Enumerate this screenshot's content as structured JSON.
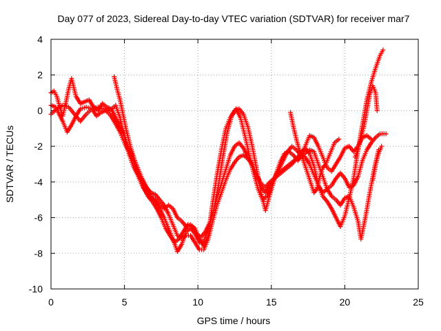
{
  "chart_data": {
    "type": "scatter",
    "title": "Day 077 of 2023, Sidereal Day-to-day VTEC variation (SDTVAR) for receiver mar7",
    "xlabel": "GPS time / hours",
    "ylabel": "SDTVAR / TECUs",
    "xlim": [
      0,
      25
    ],
    "ylim": [
      -10,
      4
    ],
    "xticks": [
      "0",
      "5",
      "10",
      "15",
      "20",
      "25"
    ],
    "yticks": [
      "-10",
      "-8",
      "-6",
      "-4",
      "-2",
      "0",
      "2",
      "4"
    ],
    "grid": true,
    "marker": "+",
    "color": "#ff0000",
    "series": [
      {
        "points": [
          [
            0.0,
            0.3
          ],
          [
            0.3,
            0.2
          ],
          [
            0.5,
            -0.1
          ],
          [
            0.8,
            -0.6
          ],
          [
            1.1,
            -1.2
          ],
          [
            1.4,
            -0.8
          ],
          [
            1.7,
            -0.3
          ],
          [
            2.0,
            0.1
          ],
          [
            2.4,
            0.2
          ],
          [
            2.8,
            0.1
          ],
          [
            3.1,
            -0.3
          ],
          [
            3.4,
            -0.1
          ],
          [
            3.7,
            0.0
          ],
          [
            4.0,
            -0.2
          ],
          [
            4.3,
            -0.6
          ],
          [
            4.7,
            -1.2
          ],
          [
            5.0,
            -1.8
          ],
          [
            5.3,
            -2.3
          ],
          [
            5.6,
            -2.8
          ],
          [
            5.9,
            -3.5
          ],
          [
            6.2,
            -4.0
          ],
          [
            6.5,
            -4.3
          ],
          [
            6.8,
            -4.6
          ],
          [
            7.1,
            -4.7
          ],
          [
            7.4,
            -5.0
          ],
          [
            7.7,
            -5.3
          ],
          [
            8.0,
            -5.8
          ],
          [
            8.3,
            -6.4
          ],
          [
            8.6,
            -7.0
          ],
          [
            8.9,
            -7.2
          ],
          [
            9.2,
            -7.0
          ],
          [
            9.5,
            -7.0
          ],
          [
            9.8,
            -7.4
          ],
          [
            10.1,
            -7.8
          ],
          [
            10.4,
            -7.8
          ],
          [
            10.7,
            -7.2
          ],
          [
            11.0,
            -6.2
          ],
          [
            11.3,
            -5.3
          ],
          [
            11.6,
            -4.6
          ],
          [
            11.9,
            -3.9
          ],
          [
            12.2,
            -3.3
          ],
          [
            12.5,
            -2.9
          ],
          [
            12.8,
            -2.6
          ],
          [
            13.1,
            -2.5
          ],
          [
            13.4,
            -2.7
          ],
          [
            13.7,
            -3.0
          ],
          [
            14.0,
            -3.6
          ],
          [
            14.3,
            -4.1
          ],
          [
            14.6,
            -4.3
          ],
          [
            14.9,
            -4.0
          ],
          [
            15.2,
            -3.8
          ],
          [
            15.5,
            -3.5
          ],
          [
            15.8,
            -3.3
          ],
          [
            16.1,
            -3.1
          ],
          [
            16.4,
            -2.9
          ],
          [
            16.7,
            -2.7
          ],
          [
            17.0,
            -2.6
          ],
          [
            17.3,
            -2.4
          ],
          [
            17.6,
            -2.2
          ],
          [
            17.9,
            -2.3
          ],
          [
            18.2,
            -3.0
          ],
          [
            18.5,
            -3.7
          ],
          [
            18.8,
            -4.4
          ],
          [
            19.1,
            -4.2
          ],
          [
            19.4,
            -3.8
          ],
          [
            19.7,
            -3.5
          ],
          [
            20.0,
            -3.8
          ],
          [
            20.3,
            -4.3
          ],
          [
            20.6,
            -4.2
          ],
          [
            20.9,
            -3.7
          ],
          [
            21.2,
            -2.8
          ],
          [
            21.5,
            -2.2
          ],
          [
            21.8,
            -1.8
          ],
          [
            22.1,
            -1.5
          ],
          [
            22.4,
            -1.3
          ],
          [
            22.8,
            -1.3
          ]
        ]
      },
      {
        "points": [
          [
            0.0,
            1.0
          ],
          [
            0.2,
            1.1
          ],
          [
            0.4,
            0.8
          ],
          [
            0.6,
            0.2
          ],
          [
            0.8,
            -0.3
          ],
          [
            1.0,
            0.4
          ],
          [
            1.2,
            1.2
          ],
          [
            1.4,
            1.8
          ],
          [
            1.7,
            0.8
          ],
          [
            2.0,
            0.4
          ],
          [
            2.3,
            0.5
          ],
          [
            2.6,
            0.6
          ],
          [
            2.9,
            0.2
          ],
          [
            3.2,
            0.0
          ],
          [
            3.5,
            0.4
          ],
          [
            3.8,
            0.2
          ],
          [
            4.1,
            0.1
          ],
          [
            4.4,
            -0.4
          ],
          [
            4.7,
            -0.9
          ],
          [
            5.0,
            -1.4
          ],
          [
            5.3,
            -2.1
          ],
          [
            5.6,
            -2.6
          ],
          [
            5.9,
            -3.2
          ],
          [
            6.2,
            -3.8
          ],
          [
            6.5,
            -4.3
          ],
          [
            6.8,
            -4.8
          ],
          [
            7.1,
            -5.0
          ],
          [
            7.4,
            -5.3
          ],
          [
            7.7,
            -5.5
          ],
          [
            8.0,
            -5.3
          ],
          [
            8.3,
            -5.5
          ],
          [
            8.6,
            -6.0
          ],
          [
            8.9,
            -6.2
          ],
          [
            9.2,
            -6.5
          ],
          [
            9.5,
            -6.4
          ],
          [
            9.8,
            -6.6
          ],
          [
            10.1,
            -7.2
          ],
          [
            10.4,
            -7.6
          ],
          [
            10.7,
            -7.0
          ],
          [
            11.0,
            -5.2
          ],
          [
            11.3,
            -3.6
          ],
          [
            11.6,
            -2.2
          ],
          [
            11.9,
            -1.0
          ],
          [
            12.2,
            -0.4
          ],
          [
            12.5,
            0.0
          ],
          [
            12.8,
            0.1
          ],
          [
            13.1,
            -0.2
          ],
          [
            13.4,
            -0.9
          ],
          [
            13.7,
            -2.0
          ],
          [
            14.0,
            -3.3
          ],
          [
            14.3,
            -4.6
          ],
          [
            14.6,
            -5.6
          ],
          [
            14.9,
            -4.7
          ],
          [
            15.2,
            -3.8
          ],
          [
            15.5,
            -3.3
          ],
          [
            15.8,
            -2.8
          ],
          [
            16.1,
            -2.3
          ],
          [
            16.4,
            -2.0
          ],
          [
            16.7,
            -2.2
          ],
          [
            17.0,
            -2.5
          ],
          [
            17.3,
            -2.6
          ],
          [
            17.6,
            -3.0
          ],
          [
            17.9,
            -3.6
          ],
          [
            18.2,
            -4.2
          ],
          [
            18.5,
            -4.8
          ],
          [
            18.8,
            -5.1
          ],
          [
            19.1,
            -5.5
          ],
          [
            19.4,
            -6.0
          ],
          [
            19.7,
            -6.5
          ],
          [
            20.0,
            -5.9
          ],
          [
            20.3,
            -4.9
          ],
          [
            20.6,
            -3.8
          ],
          [
            20.9,
            -2.2
          ],
          [
            21.2,
            -0.8
          ],
          [
            21.5,
            0.6
          ],
          [
            21.8,
            1.6
          ],
          [
            22.1,
            2.4
          ],
          [
            22.4,
            3.1
          ],
          [
            22.6,
            3.4
          ]
        ]
      },
      {
        "points": [
          [
            0.0,
            -0.2
          ],
          [
            0.4,
            0.1
          ],
          [
            0.8,
            0.3
          ],
          [
            1.2,
            0.2
          ],
          [
            1.6,
            -0.2
          ],
          [
            2.0,
            -0.6
          ],
          [
            2.4,
            -0.2
          ],
          [
            2.8,
            0.1
          ],
          [
            3.2,
            0.2
          ],
          [
            3.6,
            0.1
          ],
          [
            4.0,
            0.0
          ],
          [
            4.4,
            0.3
          ],
          [
            4.7,
            -0.4
          ],
          [
            5.0,
            -1.5
          ],
          [
            5.3,
            -2.4
          ],
          [
            5.6,
            -3.1
          ],
          [
            5.9,
            -3.6
          ],
          [
            6.2,
            -4.2
          ],
          [
            6.5,
            -4.6
          ],
          [
            6.8,
            -4.9
          ],
          [
            7.1,
            -5.1
          ],
          [
            7.4,
            -5.5
          ],
          [
            7.7,
            -6.0
          ],
          [
            8.0,
            -6.6
          ],
          [
            8.3,
            -7.2
          ],
          [
            8.6,
            -7.9
          ],
          [
            8.9,
            -7.5
          ],
          [
            9.2,
            -6.8
          ],
          [
            9.5,
            -6.6
          ],
          [
            9.8,
            -6.9
          ],
          [
            10.1,
            -7.4
          ],
          [
            10.4,
            -7.3
          ],
          [
            10.7,
            -6.7
          ],
          [
            11.0,
            -5.8
          ],
          [
            11.3,
            -4.9
          ],
          [
            11.6,
            -4.1
          ],
          [
            11.9,
            -3.3
          ],
          [
            12.2,
            -2.5
          ],
          [
            12.5,
            -2.0
          ],
          [
            12.8,
            -1.8
          ],
          [
            13.1,
            -2.1
          ],
          [
            13.4,
            -2.6
          ],
          [
            13.7,
            -3.1
          ],
          [
            14.0,
            -3.7
          ],
          [
            14.3,
            -4.3
          ],
          [
            14.6,
            -4.6
          ],
          [
            14.9,
            -4.2
          ],
          [
            15.2,
            -3.8
          ],
          [
            15.5,
            -3.6
          ],
          [
            15.8,
            -3.4
          ],
          [
            16.1,
            -3.2
          ],
          [
            16.4,
            -3.0
          ],
          [
            16.7,
            -2.7
          ],
          [
            17.0,
            -2.4
          ],
          [
            17.3,
            -2.1
          ],
          [
            17.6,
            -2.4
          ],
          [
            17.9,
            -3.1
          ],
          [
            18.2,
            -4.2
          ],
          [
            18.5,
            -4.6
          ],
          [
            18.8,
            -4.4
          ],
          [
            19.1,
            -4.8
          ],
          [
            19.4,
            -5.0
          ],
          [
            19.7,
            -5.3
          ],
          [
            20.0,
            -4.9
          ],
          [
            20.3,
            -4.8
          ],
          [
            20.6,
            -5.4
          ],
          [
            20.9,
            -6.2
          ],
          [
            21.1,
            -7.2
          ],
          [
            21.4,
            -6.0
          ],
          [
            21.7,
            -4.6
          ],
          [
            22.0,
            -3.3
          ],
          [
            22.3,
            -2.2
          ]
        ]
      },
      {
        "points": [
          [
            4.3,
            1.9
          ],
          [
            4.5,
            1.2
          ],
          [
            4.7,
            0.6
          ],
          [
            4.9,
            -0.2
          ],
          [
            5.1,
            -1.0
          ],
          [
            5.4,
            -2.0
          ],
          [
            5.7,
            -2.8
          ],
          [
            6.0,
            -3.6
          ],
          [
            6.3,
            -4.3
          ],
          [
            6.6,
            -4.8
          ],
          [
            6.9,
            -5.1
          ],
          [
            7.2,
            -5.5
          ],
          [
            7.5,
            -6.0
          ],
          [
            7.8,
            -6.6
          ],
          [
            8.1,
            -7.0
          ],
          [
            8.4,
            -7.4
          ],
          [
            8.7,
            -7.2
          ],
          [
            9.0,
            -6.8
          ],
          [
            9.3,
            -6.4
          ],
          [
            9.6,
            -6.5
          ],
          [
            9.9,
            -6.9
          ],
          [
            10.2,
            -7.1
          ],
          [
            10.5,
            -6.8
          ],
          [
            10.8,
            -6.3
          ],
          [
            11.1,
            -5.5
          ],
          [
            11.4,
            -4.2
          ],
          [
            11.7,
            -2.6
          ],
          [
            12.0,
            -1.2
          ],
          [
            12.3,
            -0.3
          ],
          [
            12.6,
            0.1
          ],
          [
            12.9,
            -0.4
          ],
          [
            13.2,
            -1.4
          ],
          [
            13.5,
            -2.5
          ],
          [
            13.8,
            -3.5
          ],
          [
            14.1,
            -4.4
          ],
          [
            14.4,
            -5.0
          ],
          [
            14.7,
            -4.8
          ],
          [
            15.0,
            -4.4
          ],
          [
            15.3,
            -3.6
          ],
          [
            15.6,
            -2.9
          ],
          [
            15.9,
            -2.4
          ],
          [
            16.2,
            -2.3
          ],
          [
            16.5,
            -2.5
          ],
          [
            16.8,
            -2.8
          ],
          [
            17.0,
            -2.6
          ],
          [
            17.3,
            -2.0
          ],
          [
            17.6,
            -1.4
          ],
          [
            17.9,
            -1.5
          ],
          [
            18.2,
            -2.0
          ],
          [
            18.5,
            -2.6
          ],
          [
            18.8,
            -3.2
          ],
          [
            19.1,
            -3.4
          ],
          [
            19.4,
            -3.0
          ],
          [
            19.7,
            -2.6
          ],
          [
            20.0,
            -2.1
          ],
          [
            20.3,
            -2.0
          ],
          [
            20.6,
            -2.3
          ],
          [
            20.9,
            -2.0
          ],
          [
            21.2,
            -1.5
          ],
          [
            21.5,
            -1.4
          ],
          [
            21.8,
            -1.6
          ]
        ]
      },
      {
        "points": [
          [
            16.3,
            -0.1
          ],
          [
            16.5,
            -0.9
          ],
          [
            16.7,
            -1.6
          ],
          [
            16.9,
            -2.2
          ],
          [
            17.1,
            -2.6
          ],
          [
            17.3,
            -3.1
          ],
          [
            17.5,
            -3.6
          ],
          [
            17.7,
            -4.1
          ],
          [
            17.9,
            -4.6
          ],
          [
            18.1,
            -4.4
          ],
          [
            18.3,
            -3.7
          ],
          [
            18.5,
            -3.2
          ],
          [
            18.7,
            -3.0
          ],
          [
            18.9,
            -2.6
          ],
          [
            19.1,
            -2.2
          ],
          [
            19.3,
            -1.8
          ],
          [
            19.6,
            -1.6
          ]
        ]
      },
      {
        "points": [
          [
            20.7,
            -2.6
          ],
          [
            20.9,
            -2.2
          ],
          [
            21.1,
            -1.5
          ],
          [
            21.3,
            -0.9
          ],
          [
            21.5,
            0.0
          ],
          [
            21.7,
            0.9
          ],
          [
            21.9,
            1.4
          ],
          [
            22.1,
            1.0
          ],
          [
            22.2,
            0.0
          ]
        ]
      },
      {
        "points": [
          [
            21.9,
            -3.9
          ],
          [
            22.1,
            -3.0
          ],
          [
            22.3,
            -2.4
          ],
          [
            22.5,
            -2.0
          ]
        ]
      }
    ]
  }
}
